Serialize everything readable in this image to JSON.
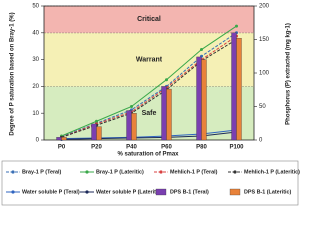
{
  "chart_data": {
    "type": "combo",
    "y_label": "Degree of P saturation based on Bray-1 (%)",
    "y2_label": "Phosphorus (P) extracted (mg kg-1)",
    "x_label": "% saturation of Pmax",
    "categories": [
      "P0",
      "P20",
      "P40",
      "P60",
      "P80",
      "P100"
    ],
    "ylim": [
      0,
      50
    ],
    "yticks": [
      0,
      10,
      20,
      30,
      40,
      50
    ],
    "y2lim": [
      0,
      200
    ],
    "y2ticks": [
      0,
      50,
      100,
      150,
      200
    ],
    "zones": [
      {
        "label": "Safe",
        "from": 0,
        "to": 20,
        "color": "#d6ecbf"
      },
      {
        "label": "Warrant",
        "from": 20,
        "to": 40,
        "color": "#f5f0b5"
      },
      {
        "label": "Critical",
        "from": 40,
        "to": 50,
        "color": "#f3b5b0"
      }
    ],
    "series": [
      {
        "name": "Bray-1 P (Teral)",
        "kind": "line",
        "axis": "y2",
        "color": "#3a6fb5",
        "dashed": true,
        "values": [
          5,
          25,
          45,
          80,
          125,
          160
        ]
      },
      {
        "name": "Bray-1 P (Lateritic)",
        "kind": "line",
        "axis": "y2",
        "color": "#3aa84a",
        "dashed": false,
        "values": [
          6,
          28,
          50,
          90,
          135,
          170
        ]
      },
      {
        "name": "Mehlich-1 P (Teral)",
        "kind": "line",
        "axis": "y2",
        "color": "#d94040",
        "dashed": true,
        "values": [
          4,
          24,
          42,
          78,
          120,
          155
        ]
      },
      {
        "name": "Mehlich-1 P (Lateritic)",
        "kind": "line",
        "axis": "y2",
        "color": "#333333",
        "dashed": true,
        "values": [
          4,
          22,
          40,
          75,
          118,
          150
        ]
      },
      {
        "name": "Water soluble P (Teral)",
        "kind": "line",
        "axis": "y2",
        "color": "#2f64c0",
        "dashed": false,
        "values": [
          2,
          3,
          4,
          6,
          9,
          15
        ]
      },
      {
        "name": "Water soluble P (Lateritic)",
        "kind": "line",
        "axis": "y2",
        "color": "#1c2a5a",
        "dashed": false,
        "values": [
          1,
          2,
          3,
          4,
          6,
          12
        ]
      },
      {
        "name": "DPS B-1 (Teral)",
        "kind": "bar",
        "color": "#7a3fb0",
        "values": [
          1,
          6,
          11,
          20,
          31,
          40
        ]
      },
      {
        "name": "DPS B-1 (Lateritic)",
        "kind": "bar",
        "color": "#e8823a",
        "values": [
          1,
          5,
          10,
          19,
          30,
          38
        ]
      }
    ]
  }
}
